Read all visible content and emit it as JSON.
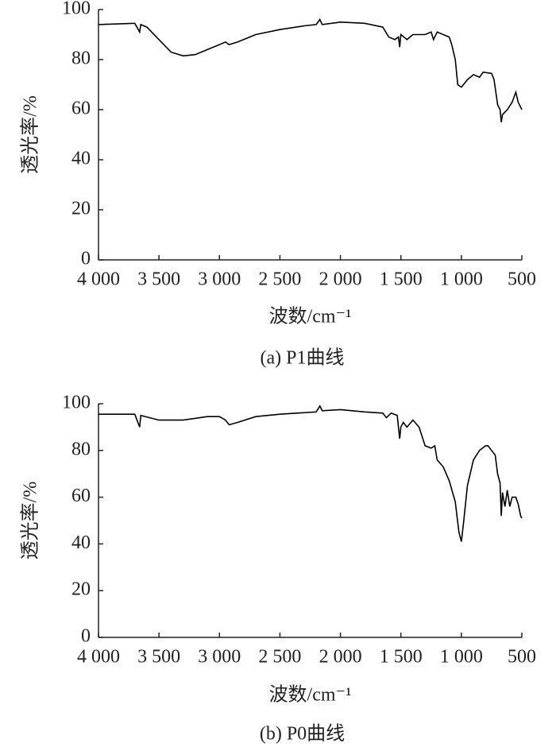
{
  "chart_data": [
    {
      "type": "line",
      "caption": "(a) P1曲线",
      "x_label": "波数/cm⁻¹",
      "y_label": "透光率/%",
      "xlim": [
        4000,
        500
      ],
      "ylim": [
        0,
        100
      ],
      "xticks": [
        {
          "value": 4000,
          "label": "4 000"
        },
        {
          "value": 3500,
          "label": "3 500"
        },
        {
          "value": 3000,
          "label": "3 000"
        },
        {
          "value": 2500,
          "label": "2 500"
        },
        {
          "value": 2000,
          "label": "2 000"
        },
        {
          "value": 1500,
          "label": "1 500"
        },
        {
          "value": 1000,
          "label": "1 000"
        },
        500
      ],
      "yticks": [
        0,
        20,
        40,
        60,
        80,
        100
      ],
      "grid": false,
      "color": "#000000",
      "x": [
        4000,
        3700,
        3660,
        3650,
        3600,
        3500,
        3400,
        3300,
        3200,
        3100,
        3000,
        2950,
        2920,
        2850,
        2700,
        2500,
        2300,
        2200,
        2170,
        2150,
        2000,
        1800,
        1650,
        1600,
        1550,
        1520,
        1510,
        1500,
        1450,
        1400,
        1300,
        1250,
        1230,
        1200,
        1150,
        1100,
        1080,
        1050,
        1030,
        1000,
        950,
        900,
        850,
        820,
        750,
        730,
        700,
        680,
        670,
        660,
        620,
        580,
        550,
        530,
        510,
        500
      ],
      "values": [
        94,
        94.5,
        91,
        94,
        93,
        88,
        83,
        81.5,
        82,
        84,
        86,
        87,
        86,
        87,
        90,
        92,
        93.5,
        94,
        96,
        94,
        95,
        94.5,
        93,
        89,
        88,
        89,
        85,
        90,
        88,
        90,
        90,
        91,
        88,
        91,
        90,
        89,
        86,
        80,
        70,
        69,
        72,
        74,
        73,
        75,
        74.5,
        72,
        62,
        60,
        55,
        58,
        60,
        63,
        67,
        63,
        61,
        60
      ]
    },
    {
      "type": "line",
      "caption": "(b) P0曲线",
      "x_label": "波数/cm⁻¹",
      "y_label": "透光率/%",
      "xlim": [
        4000,
        500
      ],
      "ylim": [
        0,
        100
      ],
      "xticks": [
        {
          "value": 4000,
          "label": "4 000"
        },
        {
          "value": 3500,
          "label": "3 500"
        },
        {
          "value": 3000,
          "label": "3 000"
        },
        {
          "value": 2500,
          "label": "2 500"
        },
        {
          "value": 2000,
          "label": "2 000"
        },
        {
          "value": 1500,
          "label": "1 500"
        },
        {
          "value": 1000,
          "label": "1 000"
        },
        500
      ],
      "yticks": [
        0,
        20,
        40,
        60,
        80,
        100
      ],
      "grid": false,
      "color": "#000000",
      "x": [
        4000,
        3700,
        3660,
        3650,
        3500,
        3300,
        3100,
        3000,
        2950,
        2920,
        2850,
        2700,
        2500,
        2200,
        2170,
        2150,
        2000,
        1800,
        1650,
        1620,
        1580,
        1530,
        1510,
        1500,
        1480,
        1450,
        1400,
        1350,
        1300,
        1250,
        1220,
        1200,
        1150,
        1100,
        1050,
        1020,
        1000,
        980,
        950,
        900,
        850,
        800,
        780,
        750,
        720,
        700,
        680,
        670,
        660,
        640,
        620,
        600,
        580,
        550,
        530,
        510,
        500
      ],
      "values": [
        95.5,
        95.5,
        90,
        95,
        93,
        93,
        94.5,
        94.5,
        93,
        91,
        92,
        94.5,
        95.5,
        96.5,
        99,
        97,
        97.5,
        96.5,
        96,
        94,
        96,
        95,
        85,
        90,
        92,
        90,
        93,
        90,
        82,
        81,
        82,
        76,
        73,
        67,
        58,
        45,
        41,
        50,
        65,
        76,
        80,
        82,
        82,
        80,
        78,
        70,
        66,
        52,
        62,
        56,
        63,
        56,
        60,
        60,
        57,
        52,
        51
      ]
    }
  ]
}
